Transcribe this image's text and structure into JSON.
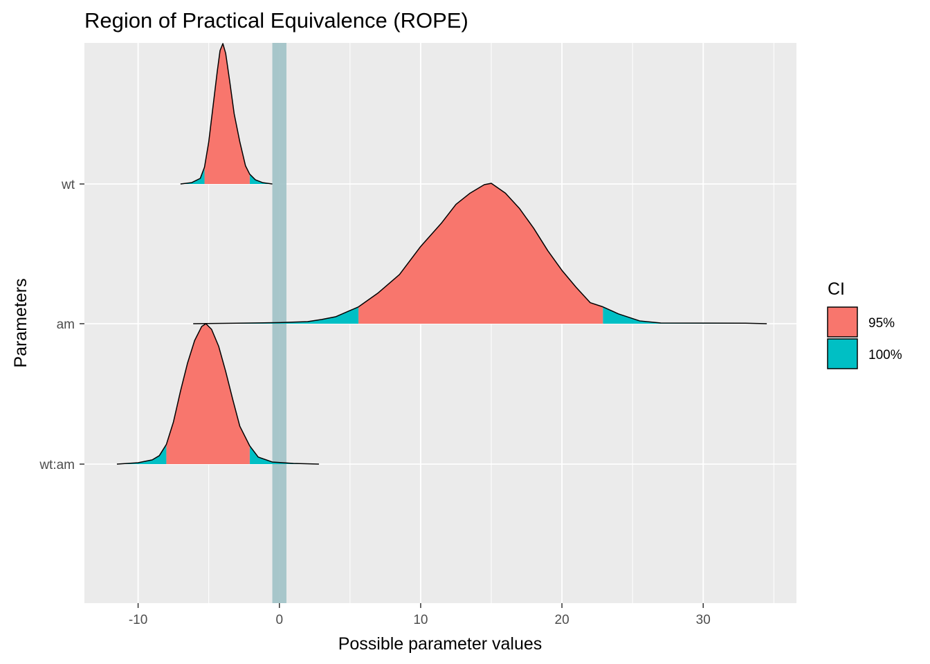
{
  "chart_data": {
    "type": "area",
    "subtype": "density-ridgeline",
    "title": "Region of Practical Equivalence (ROPE)",
    "xlabel": "Possible parameter values",
    "ylabel": "Parameters",
    "xlim": [
      -13.8,
      36.6
    ],
    "x_ticks": [
      -10,
      0,
      10,
      20,
      30
    ],
    "x_tick_labels": [
      "-10",
      "0",
      "10",
      "20",
      "30"
    ],
    "categories": [
      "wt",
      "am",
      "wt:am"
    ],
    "rope": [
      -0.5,
      0.5
    ],
    "colors": {
      "panel": "#ebebeb",
      "grid": "#ffffff",
      "rope": "#a3c4c8",
      "ci_95": "#f8766d",
      "ci_100": "#00bfc4"
    },
    "legend": {
      "title": "CI",
      "position": "right",
      "entries": [
        {
          "label": "95%",
          "color": "#f8766d"
        },
        {
          "label": "100%",
          "color": "#00bfc4"
        }
      ]
    },
    "series": [
      {
        "category": "wt",
        "ci95": [
          -5.3,
          -2.1
        ],
        "density": [
          [
            -7.0,
            0.0
          ],
          [
            -6.2,
            0.01
          ],
          [
            -5.6,
            0.04
          ],
          [
            -5.3,
            0.12
          ],
          [
            -5.0,
            0.3
          ],
          [
            -4.7,
            0.55
          ],
          [
            -4.4,
            0.8
          ],
          [
            -4.2,
            0.95
          ],
          [
            -4.0,
            1.0
          ],
          [
            -3.8,
            0.93
          ],
          [
            -3.5,
            0.72
          ],
          [
            -3.2,
            0.5
          ],
          [
            -2.8,
            0.3
          ],
          [
            -2.4,
            0.13
          ],
          [
            -2.1,
            0.07
          ],
          [
            -1.7,
            0.03
          ],
          [
            -1.2,
            0.01
          ],
          [
            -0.5,
            0.0
          ]
        ]
      },
      {
        "category": "am",
        "ci95": [
          5.6,
          22.9
        ],
        "density": [
          [
            -6.1,
            0.0
          ],
          [
            -2.0,
            0.005
          ],
          [
            0.0,
            0.008
          ],
          [
            2.0,
            0.015
          ],
          [
            3.0,
            0.03
          ],
          [
            4.0,
            0.05
          ],
          [
            5.6,
            0.12
          ],
          [
            7.0,
            0.22
          ],
          [
            8.5,
            0.35
          ],
          [
            10.0,
            0.55
          ],
          [
            11.5,
            0.72
          ],
          [
            12.5,
            0.85
          ],
          [
            13.5,
            0.93
          ],
          [
            14.5,
            0.99
          ],
          [
            15.0,
            1.0
          ],
          [
            16.0,
            0.93
          ],
          [
            17.0,
            0.82
          ],
          [
            18.0,
            0.68
          ],
          [
            19.0,
            0.52
          ],
          [
            20.0,
            0.38
          ],
          [
            21.0,
            0.26
          ],
          [
            22.0,
            0.15
          ],
          [
            22.9,
            0.12
          ],
          [
            24.0,
            0.07
          ],
          [
            25.5,
            0.02
          ],
          [
            27.0,
            0.005
          ],
          [
            33.0,
            0.004
          ],
          [
            34.5,
            0.0
          ]
        ]
      },
      {
        "category": "wt:am",
        "ci95": [
          -8.0,
          -2.1
        ],
        "density": [
          [
            -11.5,
            0.0
          ],
          [
            -10.0,
            0.01
          ],
          [
            -9.0,
            0.03
          ],
          [
            -8.5,
            0.06
          ],
          [
            -8.0,
            0.14
          ],
          [
            -7.5,
            0.3
          ],
          [
            -7.0,
            0.52
          ],
          [
            -6.5,
            0.72
          ],
          [
            -6.0,
            0.88
          ],
          [
            -5.5,
            0.98
          ],
          [
            -5.2,
            1.0
          ],
          [
            -4.8,
            0.96
          ],
          [
            -4.3,
            0.84
          ],
          [
            -3.8,
            0.66
          ],
          [
            -3.3,
            0.46
          ],
          [
            -2.8,
            0.27
          ],
          [
            -2.1,
            0.13
          ],
          [
            -1.5,
            0.05
          ],
          [
            -0.5,
            0.015
          ],
          [
            1.0,
            0.005
          ],
          [
            2.8,
            0.0
          ]
        ]
      }
    ]
  }
}
